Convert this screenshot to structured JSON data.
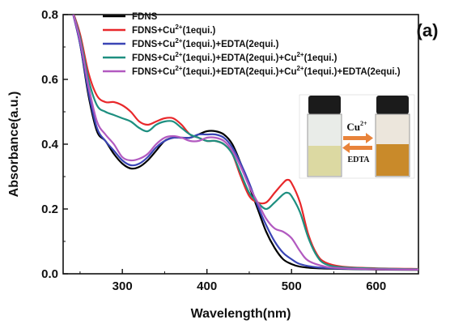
{
  "panel_label": "(a)",
  "chart_data": {
    "type": "line",
    "xlabel": "Wavelength(nm)",
    "ylabel": "Absorbance(a.u.)",
    "xlim": [
      230,
      650
    ],
    "ylim": [
      0.0,
      0.8
    ],
    "xticks": [
      300,
      400,
      500,
      600
    ],
    "yticks": [
      0.0,
      0.2,
      0.4,
      0.6,
      0.8
    ],
    "xtick_labels": [
      "300",
      "400",
      "500",
      "600"
    ],
    "ytick_labels": [
      "0.0",
      "0.2",
      "0.4",
      "0.6",
      "0.8"
    ],
    "grid": false,
    "legend_position": "top-center",
    "series": [
      {
        "name": "FDNS",
        "legend_parts": [
          {
            "text": "FDNS"
          }
        ],
        "color": "#000000",
        "points": [
          [
            240,
            0.82
          ],
          [
            250,
            0.71
          ],
          [
            260,
            0.55
          ],
          [
            270,
            0.44
          ],
          [
            280,
            0.41
          ],
          [
            290,
            0.37
          ],
          [
            300,
            0.34
          ],
          [
            310,
            0.325
          ],
          [
            320,
            0.33
          ],
          [
            330,
            0.35
          ],
          [
            340,
            0.38
          ],
          [
            350,
            0.41
          ],
          [
            360,
            0.42
          ],
          [
            370,
            0.42
          ],
          [
            380,
            0.42
          ],
          [
            390,
            0.43
          ],
          [
            400,
            0.44
          ],
          [
            410,
            0.44
          ],
          [
            420,
            0.43
          ],
          [
            430,
            0.4
          ],
          [
            440,
            0.34
          ],
          [
            450,
            0.27
          ],
          [
            460,
            0.2
          ],
          [
            470,
            0.13
          ],
          [
            480,
            0.08
          ],
          [
            490,
            0.045
          ],
          [
            500,
            0.03
          ],
          [
            510,
            0.022
          ],
          [
            530,
            0.017
          ],
          [
            560,
            0.015
          ],
          [
            600,
            0.013
          ],
          [
            650,
            0.012
          ]
        ]
      },
      {
        "name": "FDNS+Cu2+(1equi.)",
        "legend_parts": [
          {
            "text": "FDNS+Cu"
          },
          {
            "sup": "2+"
          },
          {
            "text": "(1equi.)"
          }
        ],
        "color": "#e8282b",
        "points": [
          [
            240,
            0.82
          ],
          [
            250,
            0.74
          ],
          [
            260,
            0.62
          ],
          [
            270,
            0.55
          ],
          [
            280,
            0.53
          ],
          [
            290,
            0.53
          ],
          [
            300,
            0.52
          ],
          [
            310,
            0.5
          ],
          [
            320,
            0.47
          ],
          [
            330,
            0.46
          ],
          [
            340,
            0.47
          ],
          [
            350,
            0.48
          ],
          [
            360,
            0.48
          ],
          [
            370,
            0.46
          ],
          [
            380,
            0.43
          ],
          [
            390,
            0.42
          ],
          [
            400,
            0.41
          ],
          [
            410,
            0.41
          ],
          [
            420,
            0.4
          ],
          [
            430,
            0.37
          ],
          [
            440,
            0.3
          ],
          [
            450,
            0.24
          ],
          [
            460,
            0.22
          ],
          [
            470,
            0.22
          ],
          [
            480,
            0.25
          ],
          [
            490,
            0.28
          ],
          [
            495,
            0.29
          ],
          [
            500,
            0.28
          ],
          [
            510,
            0.22
          ],
          [
            520,
            0.12
          ],
          [
            530,
            0.06
          ],
          [
            540,
            0.035
          ],
          [
            560,
            0.022
          ],
          [
            600,
            0.017
          ],
          [
            650,
            0.015
          ]
        ]
      },
      {
        "name": "FDNS+Cu2+(1equi.)+EDTA(2equi.)",
        "legend_parts": [
          {
            "text": "FDNS+Cu"
          },
          {
            "sup": "2+"
          },
          {
            "text": "(1equi.)+EDTA(2equi.)"
          }
        ],
        "color": "#3a45b5",
        "points": [
          [
            240,
            0.82
          ],
          [
            250,
            0.71
          ],
          [
            260,
            0.56
          ],
          [
            270,
            0.45
          ],
          [
            280,
            0.41
          ],
          [
            290,
            0.38
          ],
          [
            300,
            0.35
          ],
          [
            310,
            0.335
          ],
          [
            320,
            0.34
          ],
          [
            330,
            0.36
          ],
          [
            340,
            0.39
          ],
          [
            350,
            0.41
          ],
          [
            360,
            0.42
          ],
          [
            370,
            0.42
          ],
          [
            380,
            0.42
          ],
          [
            390,
            0.43
          ],
          [
            400,
            0.43
          ],
          [
            410,
            0.43
          ],
          [
            420,
            0.42
          ],
          [
            430,
            0.39
          ],
          [
            440,
            0.34
          ],
          [
            450,
            0.28
          ],
          [
            460,
            0.21
          ],
          [
            470,
            0.15
          ],
          [
            480,
            0.1
          ],
          [
            490,
            0.065
          ],
          [
            500,
            0.045
          ],
          [
            510,
            0.03
          ],
          [
            530,
            0.02
          ],
          [
            560,
            0.016
          ],
          [
            600,
            0.014
          ],
          [
            650,
            0.013
          ]
        ]
      },
      {
        "name": "FDNS+Cu2+(1equi.)+EDTA(2equi.)+Cu2+(1equi.)",
        "legend_parts": [
          {
            "text": "FDNS+Cu"
          },
          {
            "sup": "2+"
          },
          {
            "text": "(1equi.)+EDTA(2equi.)+Cu"
          },
          {
            "sup": "2+"
          },
          {
            "text": "(1equi.)"
          }
        ],
        "color": "#1e8f80",
        "points": [
          [
            240,
            0.82
          ],
          [
            250,
            0.73
          ],
          [
            260,
            0.6
          ],
          [
            270,
            0.52
          ],
          [
            280,
            0.5
          ],
          [
            290,
            0.49
          ],
          [
            300,
            0.48
          ],
          [
            310,
            0.47
          ],
          [
            320,
            0.45
          ],
          [
            330,
            0.44
          ],
          [
            340,
            0.46
          ],
          [
            350,
            0.47
          ],
          [
            360,
            0.47
          ],
          [
            370,
            0.45
          ],
          [
            380,
            0.43
          ],
          [
            390,
            0.42
          ],
          [
            400,
            0.41
          ],
          [
            410,
            0.41
          ],
          [
            420,
            0.4
          ],
          [
            430,
            0.37
          ],
          [
            440,
            0.31
          ],
          [
            450,
            0.25
          ],
          [
            460,
            0.22
          ],
          [
            470,
            0.2
          ],
          [
            480,
            0.22
          ],
          [
            490,
            0.245
          ],
          [
            495,
            0.25
          ],
          [
            500,
            0.24
          ],
          [
            510,
            0.19
          ],
          [
            520,
            0.11
          ],
          [
            530,
            0.055
          ],
          [
            540,
            0.03
          ],
          [
            560,
            0.02
          ],
          [
            600,
            0.016
          ],
          [
            650,
            0.014
          ]
        ]
      },
      {
        "name": "FDNS+Cu2+(1equi.)+EDTA(2equi.)+Cu2+(1equi.)+EDTA(2equi.)",
        "legend_parts": [
          {
            "text": "FDNS+Cu"
          },
          {
            "sup": "2+"
          },
          {
            "text": "(1equi.)+EDTA(2equi.)+Cu"
          },
          {
            "sup": "2+"
          },
          {
            "text": "(1equi.)+EDTA(2equi.)"
          }
        ],
        "color": "#b25ac0",
        "points": [
          [
            240,
            0.82
          ],
          [
            250,
            0.72
          ],
          [
            260,
            0.58
          ],
          [
            270,
            0.47
          ],
          [
            280,
            0.43
          ],
          [
            290,
            0.4
          ],
          [
            300,
            0.36
          ],
          [
            310,
            0.35
          ],
          [
            320,
            0.355
          ],
          [
            330,
            0.37
          ],
          [
            340,
            0.4
          ],
          [
            350,
            0.42
          ],
          [
            360,
            0.425
          ],
          [
            370,
            0.42
          ],
          [
            380,
            0.41
          ],
          [
            390,
            0.41
          ],
          [
            400,
            0.42
          ],
          [
            410,
            0.42
          ],
          [
            420,
            0.41
          ],
          [
            430,
            0.38
          ],
          [
            440,
            0.33
          ],
          [
            450,
            0.27
          ],
          [
            460,
            0.22
          ],
          [
            470,
            0.17
          ],
          [
            480,
            0.14
          ],
          [
            490,
            0.13
          ],
          [
            500,
            0.11
          ],
          [
            510,
            0.07
          ],
          [
            520,
            0.04
          ],
          [
            540,
            0.022
          ],
          [
            560,
            0.017
          ],
          [
            600,
            0.014
          ],
          [
            650,
            0.013
          ]
        ]
      }
    ]
  },
  "inset": {
    "top_label_text": "Cu",
    "top_label_sup": "2+",
    "bottom_label": "EDTA",
    "left_vial_liquid_color": "#dcd9a2",
    "right_vial_liquid_color": "#c98a2a",
    "arrow_color": "#e8833a"
  }
}
